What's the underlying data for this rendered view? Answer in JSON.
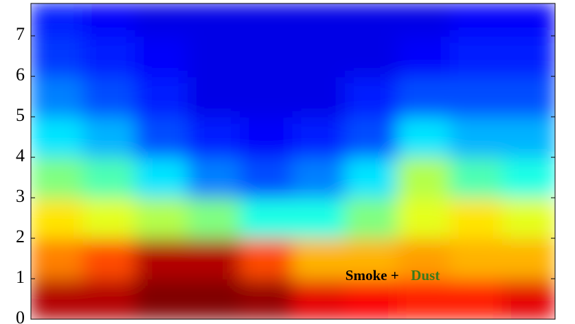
{
  "chart_data": {
    "type": "heatmap",
    "colormap": "jet",
    "ybins": [
      0,
      1,
      2,
      3,
      4,
      5,
      6,
      7,
      7.8
    ],
    "categories": [
      null,
      null,
      null,
      null,
      null,
      null,
      null,
      null,
      null,
      null
    ],
    "z": [
      [
        0.95,
        0.95,
        1,
        1,
        0.98,
        0.9,
        0.88,
        0.85,
        0.85,
        0.9
      ],
      [
        0.75,
        0.8,
        0.95,
        0.95,
        0.8,
        0.7,
        0.7,
        0.72,
        0.7,
        0.7
      ],
      [
        0.65,
        0.6,
        0.55,
        0.5,
        0.4,
        0.4,
        0.5,
        0.6,
        0.65,
        0.6
      ],
      [
        0.5,
        0.45,
        0.35,
        0.25,
        0.2,
        0.25,
        0.35,
        0.55,
        0.45,
        0.4
      ],
      [
        0.35,
        0.3,
        0.2,
        0.15,
        0.12,
        0.15,
        0.2,
        0.35,
        0.3,
        0.3
      ],
      [
        0.25,
        0.2,
        0.15,
        0.1,
        0.1,
        0.1,
        0.15,
        0.2,
        0.2,
        0.2
      ],
      [
        0.18,
        0.15,
        0.12,
        0.1,
        0.1,
        0.1,
        0.1,
        0.12,
        0.15,
        0.15
      ],
      [
        0.15,
        0.12,
        0.1,
        0.1,
        0.1,
        0.1,
        0.1,
        0.1,
        0.12,
        0.12
      ]
    ],
    "ylim": [
      0,
      7.8
    ],
    "yticks": [
      0,
      1,
      2,
      3,
      4,
      5,
      6,
      7
    ],
    "annotations": [
      {
        "text": "Smoke + ",
        "color": "#000000",
        "x": 6,
        "y": 1.05
      },
      {
        "text": "Dust",
        "color": "#3a7a1a",
        "x": 7.25,
        "y": 1.05
      }
    ]
  }
}
